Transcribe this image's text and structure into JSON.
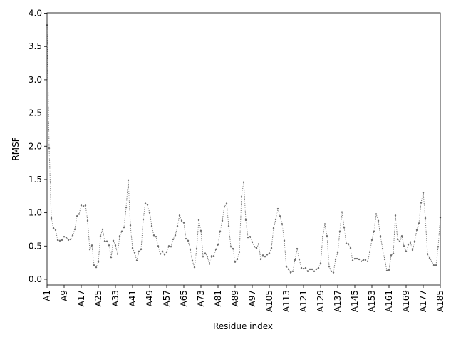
{
  "chart_data": {
    "type": "line",
    "xlabel": "Residue index",
    "ylabel": "RMSF",
    "categories": [
      "A1",
      null,
      null,
      null,
      null,
      null,
      null,
      null,
      "A9",
      null,
      null,
      null,
      null,
      null,
      null,
      null,
      "A17",
      null,
      null,
      null,
      null,
      null,
      null,
      null,
      "A25",
      null,
      null,
      null,
      null,
      null,
      null,
      null,
      "A33",
      null,
      null,
      null,
      null,
      null,
      null,
      null,
      "A41",
      null,
      null,
      null,
      null,
      null,
      null,
      null,
      "A49",
      null,
      null,
      null,
      null,
      null,
      null,
      null,
      "A57",
      null,
      null,
      null,
      null,
      null,
      null,
      null,
      "A65",
      null,
      null,
      null,
      null,
      null,
      null,
      null,
      "A73",
      null,
      null,
      null,
      null,
      null,
      null,
      null,
      "A81",
      null,
      null,
      null,
      null,
      null,
      null,
      null,
      "A89",
      null,
      null,
      null,
      null,
      null,
      null,
      null,
      "A97",
      null,
      null,
      null,
      null,
      null,
      null,
      null,
      "A105",
      null,
      null,
      null,
      null,
      null,
      null,
      null,
      "A113",
      null,
      null,
      null,
      null,
      null,
      null,
      null,
      "A121",
      null,
      null,
      null,
      null,
      null,
      null,
      null,
      "A129",
      null,
      null,
      null,
      null,
      null,
      null,
      null,
      "A137",
      null,
      null,
      null,
      null,
      null,
      null,
      null,
      "A145",
      null,
      null,
      null,
      null,
      null,
      null,
      null,
      "A153",
      null,
      null,
      null,
      null,
      null,
      null,
      null,
      "A161",
      null,
      null,
      null,
      null,
      null,
      null,
      null,
      "A169",
      null,
      null,
      null,
      null,
      null,
      null,
      null,
      "A177",
      null,
      null,
      null,
      null,
      null,
      null,
      null,
      "A185"
    ],
    "values": [
      3.82,
      1.97,
      0.92,
      0.77,
      0.74,
      0.59,
      0.58,
      0.59,
      0.64,
      0.63,
      0.59,
      0.6,
      0.66,
      0.75,
      0.95,
      0.98,
      1.11,
      1.1,
      1.11,
      0.88,
      0.45,
      0.51,
      0.21,
      0.18,
      0.26,
      0.65,
      0.75,
      0.57,
      0.57,
      0.51,
      0.33,
      0.58,
      0.51,
      0.38,
      0.65,
      0.72,
      0.78,
      1.08,
      1.49,
      0.81,
      0.47,
      0.4,
      0.28,
      0.42,
      0.45,
      0.9,
      1.14,
      1.12,
      1.0,
      0.8,
      0.66,
      0.64,
      0.5,
      0.38,
      0.42,
      0.37,
      0.41,
      0.5,
      0.49,
      0.6,
      0.66,
      0.8,
      0.96,
      0.88,
      0.85,
      0.61,
      0.58,
      0.45,
      0.28,
      0.18,
      0.46,
      0.89,
      0.73,
      0.34,
      0.39,
      0.34,
      0.23,
      0.35,
      0.35,
      0.45,
      0.52,
      0.72,
      0.88,
      1.09,
      1.14,
      0.8,
      0.49,
      0.46,
      0.26,
      0.3,
      0.41,
      1.24,
      1.46,
      0.89,
      0.63,
      0.64,
      0.56,
      0.49,
      0.47,
      0.53,
      0.3,
      0.36,
      0.34,
      0.37,
      0.39,
      0.47,
      0.77,
      0.9,
      1.06,
      0.95,
      0.83,
      0.58,
      0.19,
      0.15,
      0.1,
      0.12,
      0.29,
      0.46,
      0.3,
      0.17,
      0.16,
      0.17,
      0.12,
      0.15,
      0.15,
      0.12,
      0.15,
      0.17,
      0.24,
      0.64,
      0.83,
      0.65,
      0.19,
      0.12,
      0.1,
      0.3,
      0.4,
      0.72,
      1.01,
      0.78,
      0.54,
      0.53,
      0.47,
      0.28,
      0.31,
      0.31,
      0.3,
      0.27,
      0.29,
      0.29,
      0.27,
      0.41,
      0.59,
      0.72,
      0.98,
      0.88,
      0.65,
      0.46,
      0.3,
      0.13,
      0.14,
      0.36,
      0.39,
      0.96,
      0.6,
      0.57,
      0.65,
      0.5,
      0.42,
      0.52,
      0.56,
      0.44,
      0.57,
      0.74,
      0.84,
      1.15,
      1.3,
      0.92,
      0.38,
      0.32,
      0.27,
      0.21,
      0.21,
      0.49,
      0.93
    ],
    "color": "#6e6e6e",
    "line_style": "dotted",
    "marker": "o",
    "ylim": [
      -0.086,
      4.006
    ],
    "yticks": [
      {
        "value": 0,
        "label": "0.0"
      },
      {
        "value": 0.5,
        "label": "0.5"
      },
      {
        "value": 1,
        "label": "1.0"
      },
      {
        "value": 1.5,
        "label": "1.5"
      },
      {
        "value": 2,
        "label": "2.0"
      },
      {
        "value": 2.5,
        "label": "2.5"
      },
      {
        "value": 3,
        "label": "3.0"
      },
      {
        "value": 3.5,
        "label": "3.5"
      },
      {
        "value": 4,
        "label": "4.0"
      }
    ]
  }
}
